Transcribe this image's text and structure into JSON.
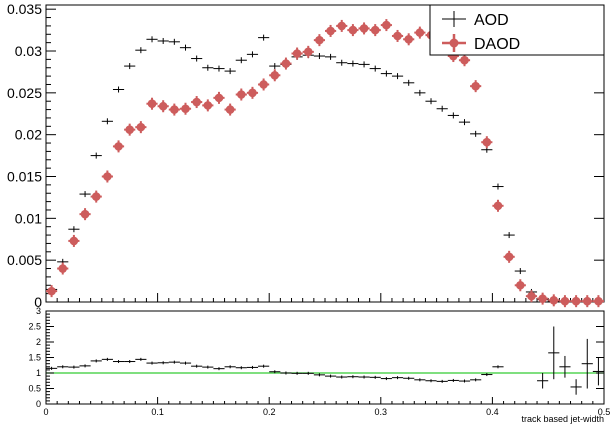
{
  "chart_data": [
    {
      "type": "scatter",
      "panel": "main",
      "xlim": [
        0,
        0.5
      ],
      "ylim": [
        0,
        0.0355
      ],
      "ytick_labels": [
        "0",
        "0.005",
        "0.01",
        "0.015",
        "0.02",
        "0.025",
        "0.03",
        "0.035"
      ],
      "yticks": [
        0,
        0.005,
        0.01,
        0.015,
        0.02,
        0.025,
        0.03,
        0.035
      ],
      "legend": {
        "position": "top-right"
      },
      "series": [
        {
          "name": "AOD",
          "color": "#000000",
          "style": "errorbar-cross",
          "x": [
            0.005,
            0.015,
            0.025,
            0.035,
            0.045,
            0.055,
            0.065,
            0.075,
            0.085,
            0.095,
            0.105,
            0.115,
            0.125,
            0.135,
            0.145,
            0.155,
            0.165,
            0.175,
            0.185,
            0.195,
            0.205,
            0.215,
            0.225,
            0.235,
            0.245,
            0.255,
            0.265,
            0.275,
            0.285,
            0.295,
            0.305,
            0.315,
            0.325,
            0.335,
            0.345,
            0.355,
            0.365,
            0.375,
            0.385,
            0.395,
            0.405,
            0.415,
            0.425,
            0.435,
            0.445,
            0.455,
            0.465,
            0.475,
            0.485,
            0.495
          ],
          "y": [
            0.0015,
            0.0048,
            0.0087,
            0.0129,
            0.0175,
            0.0216,
            0.0254,
            0.0282,
            0.0301,
            0.0314,
            0.0312,
            0.0311,
            0.0304,
            0.0291,
            0.028,
            0.0279,
            0.0276,
            0.0289,
            0.0296,
            0.0316,
            0.0282,
            0.0284,
            0.0293,
            0.0295,
            0.0294,
            0.0293,
            0.0286,
            0.0285,
            0.0284,
            0.0279,
            0.0273,
            0.027,
            0.0262,
            0.025,
            0.024,
            0.0231,
            0.0223,
            0.0215,
            0.0201,
            0.0182,
            0.0138,
            0.008,
            0.0037,
            0.0012,
            0.0003,
            0.0001,
            5e-05,
            3e-05,
            2e-05,
            2e-05
          ]
        },
        {
          "name": "DAOD",
          "color": "#cd5c5c",
          "style": "errorbar-marker",
          "x": [
            0.005,
            0.015,
            0.025,
            0.035,
            0.045,
            0.055,
            0.065,
            0.075,
            0.085,
            0.095,
            0.105,
            0.115,
            0.125,
            0.135,
            0.145,
            0.155,
            0.165,
            0.175,
            0.185,
            0.195,
            0.205,
            0.215,
            0.225,
            0.235,
            0.245,
            0.255,
            0.265,
            0.275,
            0.285,
            0.295,
            0.305,
            0.315,
            0.325,
            0.335,
            0.345,
            0.355,
            0.365,
            0.375,
            0.385,
            0.395,
            0.405,
            0.415,
            0.425,
            0.435,
            0.445,
            0.455,
            0.465,
            0.475,
            0.485,
            0.495
          ],
          "y": [
            0.0013,
            0.004,
            0.0073,
            0.0105,
            0.0126,
            0.015,
            0.0186,
            0.0206,
            0.0209,
            0.0237,
            0.0234,
            0.023,
            0.0231,
            0.0239,
            0.0235,
            0.0244,
            0.023,
            0.0248,
            0.025,
            0.026,
            0.0271,
            0.0285,
            0.0297,
            0.0299,
            0.0313,
            0.0324,
            0.033,
            0.0325,
            0.0327,
            0.0325,
            0.0331,
            0.0318,
            0.0314,
            0.0322,
            0.0319,
            0.0316,
            0.0294,
            0.0289,
            0.0258,
            0.0191,
            0.0115,
            0.0054,
            0.002,
            0.0007,
            0.0004,
            0.0002,
            0.0001,
            0.0001,
            0.0001,
            0.0001
          ]
        }
      ]
    },
    {
      "type": "scatter",
      "panel": "ratio",
      "xlim": [
        0,
        0.5
      ],
      "ylim": [
        0,
        3
      ],
      "yticks": [
        0,
        0.5,
        1,
        1.5,
        2,
        2.5,
        3
      ],
      "ytick_labels": [
        "0",
        "0.5",
        "1",
        "1.5",
        "2",
        "2.5",
        "3"
      ],
      "xticks": [
        0,
        0.1,
        0.2,
        0.3,
        0.4,
        0.5
      ],
      "xtick_labels": [
        "0",
        "0.1",
        "0.2",
        "0.3",
        "0.4",
        "0.5"
      ],
      "xlabel": "track based jet-width",
      "reference_line": {
        "y": 1,
        "color": "#33cc33"
      },
      "series": [
        {
          "color": "#000000",
          "x": [
            0.005,
            0.015,
            0.025,
            0.035,
            0.045,
            0.055,
            0.065,
            0.075,
            0.085,
            0.095,
            0.105,
            0.115,
            0.125,
            0.135,
            0.145,
            0.155,
            0.165,
            0.175,
            0.185,
            0.195,
            0.205,
            0.215,
            0.225,
            0.235,
            0.245,
            0.255,
            0.265,
            0.275,
            0.285,
            0.295,
            0.305,
            0.315,
            0.325,
            0.335,
            0.345,
            0.355,
            0.365,
            0.375,
            0.385,
            0.395,
            0.405,
            0.415,
            0.425,
            0.435,
            0.445,
            0.455,
            0.465,
            0.475,
            0.485,
            0.495
          ],
          "y": [
            1.15,
            1.2,
            1.19,
            1.23,
            1.39,
            1.44,
            1.37,
            1.37,
            1.44,
            1.32,
            1.33,
            1.35,
            1.32,
            1.22,
            1.19,
            1.14,
            1.2,
            1.17,
            1.18,
            1.22,
            1.04,
            1.0,
            0.99,
            0.99,
            0.94,
            0.9,
            0.87,
            0.88,
            0.87,
            0.86,
            0.82,
            0.85,
            0.83,
            0.78,
            0.75,
            0.73,
            0.76,
            0.74,
            0.78,
            0.95,
            1.2,
            1.48,
            1.85,
            1.71,
            0.75,
            1.65,
            1.2,
            0.55,
            1.3,
            1.05
          ],
          "yerr": [
            0.05,
            0.03,
            0.02,
            0.02,
            0.02,
            0.02,
            0.02,
            0.02,
            0.02,
            0.02,
            0.02,
            0.02,
            0.02,
            0.02,
            0.02,
            0.02,
            0.02,
            0.02,
            0.02,
            0.02,
            0.02,
            0.02,
            0.02,
            0.02,
            0.02,
            0.02,
            0.02,
            0.02,
            0.02,
            0.02,
            0.02,
            0.02,
            0.02,
            0.02,
            0.02,
            0.02,
            0.02,
            0.02,
            0.02,
            0.02,
            0.03,
            0.05,
            0.08,
            0.15,
            0.25,
            0.85,
            0.35,
            0.25,
            0.8,
            0.45
          ],
          "visible_from_index": 0,
          "hidden": [
            41,
            42,
            43
          ]
        }
      ]
    }
  ],
  "legend_labels": {
    "aod": "AOD",
    "daod": "DAOD"
  },
  "xlabel": "track based jet-width"
}
